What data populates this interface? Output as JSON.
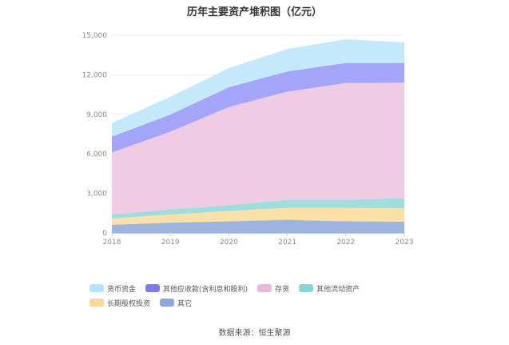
{
  "chart_data": {
    "type": "area",
    "stacked": true,
    "title": "历年主要资产堆积图（亿元）",
    "x": [
      "2018",
      "2019",
      "2020",
      "2021",
      "2022",
      "2023"
    ],
    "ylim": [
      0,
      15000
    ],
    "y_ticks": [
      "0",
      "3,000",
      "6,000",
      "9,000",
      "12,000",
      "15,000"
    ],
    "y_tick_values": [
      0,
      3000,
      6000,
      9000,
      12000,
      15000
    ],
    "grid": true,
    "legend_position": "bottom",
    "series": [
      {
        "name": "其它",
        "color": "#9db5de",
        "values": [
          620,
          780,
          880,
          1000,
          880,
          860
        ]
      },
      {
        "name": "长期股权投资",
        "color": "#fbe0a8",
        "values": [
          470,
          620,
          780,
          900,
          1020,
          1000
        ]
      },
      {
        "name": "其他流动资产",
        "color": "#a0dddd",
        "values": [
          310,
          380,
          440,
          620,
          620,
          780
        ]
      },
      {
        "name": "存货",
        "color": "#efcbe4",
        "values": [
          4700,
          5900,
          7450,
          8200,
          8850,
          8760
        ]
      },
      {
        "name": "其他应收款(含利息和股利)",
        "color": "#a4a4f8",
        "values": [
          1200,
          1300,
          1500,
          1530,
          1530,
          1500
        ]
      },
      {
        "name": "货币资金",
        "color": "#c4e9fb",
        "values": [
          1050,
          1350,
          1450,
          1700,
          1800,
          1550
        ]
      }
    ],
    "legend_order": [
      "货币资金",
      "其他应收款(含利息和股利)",
      "存货",
      "其他流动资产",
      "长期股权投资",
      "其它"
    ],
    "legend_colors": {
      "货币资金": "#b4e2fa",
      "其他应收款(含利息和股利)": "#7c7cf0",
      "存货": "#ebb8dc",
      "其他流动资产": "#88d6d6",
      "长期股权投资": "#fad795",
      "其它": "#8fa8d8"
    }
  },
  "source": "数据来源：恒生聚源"
}
